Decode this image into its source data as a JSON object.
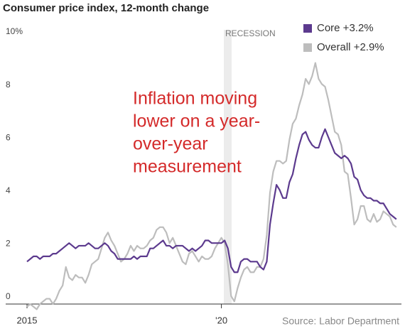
{
  "chart_data": {
    "type": "line",
    "title": "Consumer price index, 12-month change",
    "source": "Source: Labor Department",
    "recession_label": "RECESSION",
    "annotation": [
      "Inflation moving",
      "lower on a year-",
      "over-year",
      "measurement"
    ],
    "annotation_color": "#d42a2a",
    "grid": false,
    "legend": "top-right",
    "categories": [
      "2015",
      null,
      null,
      null,
      null,
      null,
      null,
      null,
      null,
      null,
      null,
      null,
      null,
      null,
      null,
      null,
      null,
      null,
      null,
      null,
      null,
      null,
      null,
      null,
      null,
      null,
      null,
      null,
      null,
      null,
      null,
      null,
      null,
      null,
      null,
      null,
      null,
      null,
      null,
      null,
      null,
      null,
      null,
      null,
      null,
      null,
      null,
      null,
      null,
      null,
      null,
      null,
      null,
      null,
      null,
      null,
      null,
      null,
      null,
      null,
      "'20",
      null,
      null,
      null,
      null,
      null,
      null,
      null,
      null,
      null,
      null,
      null,
      null,
      null,
      null,
      null,
      null,
      null,
      null,
      null,
      null,
      null,
      null,
      null,
      null,
      null,
      null,
      null,
      null,
      null,
      null,
      null,
      null,
      null,
      null,
      null,
      null,
      null,
      null,
      null,
      null,
      null,
      null,
      null,
      null,
      null,
      null,
      null,
      null,
      null,
      null,
      null,
      null,
      null,
      null
    ],
    "ylim": [
      0,
      10
    ],
    "yticks": [
      0,
      2,
      4,
      6,
      8,
      {
        "value": 10,
        "label": "10%"
      }
    ],
    "series": [
      {
        "name": "Overall +2.9%",
        "color": "#bdbdbd",
        "values": [
          -0.1,
          0.0,
          -0.1,
          -0.2,
          0.0,
          0.1,
          0.2,
          0.2,
          0.0,
          0.2,
          0.5,
          0.7,
          1.4,
          1.0,
          0.9,
          1.1,
          1.0,
          1.0,
          0.8,
          1.1,
          1.5,
          1.6,
          1.7,
          2.1,
          2.5,
          2.7,
          2.4,
          2.2,
          1.9,
          1.6,
          1.7,
          1.9,
          2.2,
          2.0,
          2.2,
          2.1,
          2.1,
          2.2,
          2.4,
          2.5,
          2.8,
          2.9,
          2.9,
          2.7,
          2.3,
          2.5,
          2.2,
          1.9,
          1.6,
          1.5,
          1.9,
          2.0,
          1.8,
          1.6,
          1.8,
          1.7,
          1.7,
          1.8,
          2.1,
          2.3,
          2.5,
          2.3,
          1.5,
          0.3,
          0.1,
          0.6,
          1.0,
          1.3,
          1.4,
          1.2,
          1.2,
          1.4,
          1.4,
          1.7,
          2.6,
          4.2,
          5.0,
          5.4,
          5.4,
          5.3,
          5.4,
          6.2,
          6.8,
          7.0,
          7.5,
          7.9,
          8.5,
          8.3,
          8.6,
          9.1,
          8.5,
          8.3,
          8.2,
          7.7,
          7.1,
          6.5,
          6.4,
          6.0,
          5.0,
          4.9,
          4.0,
          3.0,
          3.2,
          3.7,
          3.7,
          3.2,
          3.1,
          3.4,
          3.1,
          3.2,
          3.5,
          3.4,
          3.3,
          3.0,
          2.9
        ]
      },
      {
        "name": "Core +3.2%",
        "color": "#5c3a8e",
        "values": [
          1.6,
          1.7,
          1.8,
          1.8,
          1.7,
          1.8,
          1.8,
          1.8,
          1.9,
          1.9,
          2.0,
          2.1,
          2.2,
          2.3,
          2.2,
          2.1,
          2.2,
          2.2,
          2.2,
          2.3,
          2.2,
          2.1,
          2.1,
          2.2,
          2.3,
          2.2,
          2.0,
          1.9,
          1.7,
          1.7,
          1.7,
          1.7,
          1.7,
          1.8,
          1.7,
          1.8,
          1.8,
          1.8,
          2.1,
          2.1,
          2.2,
          2.3,
          2.4,
          2.2,
          2.2,
          2.1,
          2.2,
          2.2,
          2.2,
          2.1,
          2.0,
          2.1,
          2.0,
          2.1,
          2.2,
          2.4,
          2.4,
          2.3,
          2.3,
          2.3,
          2.3,
          2.4,
          2.1,
          1.4,
          1.2,
          1.2,
          1.6,
          1.7,
          1.7,
          1.6,
          1.6,
          1.6,
          1.4,
          1.3,
          1.6,
          3.0,
          3.8,
          4.5,
          4.3,
          4.0,
          4.0,
          4.6,
          4.9,
          5.5,
          6.0,
          6.4,
          6.5,
          6.2,
          6.0,
          5.9,
          5.9,
          6.3,
          6.6,
          6.3,
          6.0,
          5.7,
          5.6,
          5.5,
          5.6,
          5.5,
          5.3,
          4.8,
          4.7,
          4.3,
          4.1,
          4.0,
          4.0,
          3.9,
          3.9,
          3.8,
          3.8,
          3.6,
          3.4,
          3.3,
          3.2
        ]
      }
    ]
  }
}
